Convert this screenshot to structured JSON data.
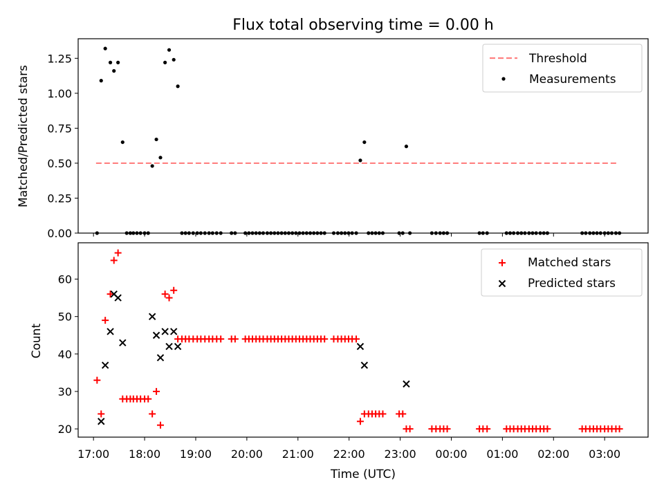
{
  "chart_data": [
    {
      "type": "scatter",
      "title": "Flux total observing time = 0.00 h",
      "xlabel": "",
      "ylabel": "Matched/Predicted stars",
      "ylim": [
        0,
        1.39
      ],
      "xlim": [
        -0.3,
        10.85
      ],
      "yticks": [
        0,
        0.25,
        0.5,
        0.75,
        1.0,
        1.25
      ],
      "ytick_labels": [
        "0.00",
        "0.25",
        "0.50",
        "0.75",
        "1.00",
        "1.25"
      ],
      "legend_position": "top-right",
      "threshold": {
        "name": "Threshold",
        "y": 0.5,
        "x_range": [
          0.05,
          10.25
        ],
        "color": "#ff8080"
      },
      "series": [
        {
          "name": "Measurements",
          "color": "#000000",
          "points": [
            [
              0.07,
              0
            ],
            [
              0.15,
              1.09
            ],
            [
              0.23,
              1.32
            ],
            [
              0.33,
              1.22
            ],
            [
              0.4,
              1.16
            ],
            [
              0.48,
              1.22
            ],
            [
              0.57,
              0.65
            ],
            [
              0.65,
              0
            ],
            [
              0.72,
              0
            ],
            [
              0.78,
              0
            ],
            [
              0.85,
              0
            ],
            [
              0.92,
              0
            ],
            [
              1.0,
              0
            ],
            [
              1.07,
              0
            ],
            [
              1.15,
              0.48
            ],
            [
              1.23,
              0.67
            ],
            [
              1.31,
              0.54
            ],
            [
              1.4,
              1.22
            ],
            [
              1.48,
              1.31
            ],
            [
              1.57,
              1.24
            ],
            [
              1.65,
              1.05
            ],
            [
              1.73,
              0
            ],
            [
              1.8,
              0
            ],
            [
              1.87,
              0
            ],
            [
              1.95,
              0
            ],
            [
              2.03,
              0
            ],
            [
              2.1,
              0
            ],
            [
              2.18,
              0
            ],
            [
              2.26,
              0
            ],
            [
              2.33,
              0
            ],
            [
              2.41,
              0
            ],
            [
              2.49,
              0
            ],
            [
              2.7,
              0
            ],
            [
              2.77,
              0
            ],
            [
              2.97,
              0
            ],
            [
              3.04,
              0
            ],
            [
              3.11,
              0
            ],
            [
              3.18,
              0
            ],
            [
              3.25,
              0
            ],
            [
              3.32,
              0
            ],
            [
              3.4,
              0
            ],
            [
              3.47,
              0
            ],
            [
              3.54,
              0
            ],
            [
              3.61,
              0
            ],
            [
              3.68,
              0
            ],
            [
              3.75,
              0
            ],
            [
              3.82,
              0
            ],
            [
              3.89,
              0
            ],
            [
              3.96,
              0
            ],
            [
              4.03,
              0
            ],
            [
              4.1,
              0
            ],
            [
              4.17,
              0
            ],
            [
              4.24,
              0
            ],
            [
              4.31,
              0
            ],
            [
              4.38,
              0
            ],
            [
              4.45,
              0
            ],
            [
              4.52,
              0
            ],
            [
              4.7,
              0
            ],
            [
              4.78,
              0
            ],
            [
              4.85,
              0
            ],
            [
              4.92,
              0
            ],
            [
              4.99,
              0
            ],
            [
              5.06,
              0
            ],
            [
              5.14,
              0
            ],
            [
              5.22,
              0.52
            ],
            [
              5.3,
              0.65
            ],
            [
              5.38,
              0
            ],
            [
              5.45,
              0
            ],
            [
              5.52,
              0
            ],
            [
              5.59,
              0
            ],
            [
              5.66,
              0
            ],
            [
              5.98,
              0
            ],
            [
              6.05,
              0
            ],
            [
              6.12,
              0.62
            ],
            [
              6.19,
              0
            ],
            [
              6.62,
              0
            ],
            [
              6.7,
              0
            ],
            [
              6.78,
              0
            ],
            [
              6.85,
              0
            ],
            [
              6.92,
              0
            ],
            [
              7.55,
              0
            ],
            [
              7.62,
              0
            ],
            [
              7.7,
              0
            ],
            [
              8.08,
              0
            ],
            [
              8.15,
              0
            ],
            [
              8.22,
              0
            ],
            [
              8.3,
              0
            ],
            [
              8.37,
              0
            ],
            [
              8.44,
              0
            ],
            [
              8.52,
              0
            ],
            [
              8.59,
              0
            ],
            [
              8.66,
              0
            ],
            [
              8.74,
              0
            ],
            [
              8.81,
              0
            ],
            [
              8.88,
              0
            ],
            [
              9.56,
              0
            ],
            [
              9.63,
              0
            ],
            [
              9.71,
              0
            ],
            [
              9.78,
              0
            ],
            [
              9.85,
              0
            ],
            [
              9.92,
              0
            ],
            [
              10.0,
              0
            ],
            [
              10.07,
              0
            ],
            [
              10.14,
              0
            ],
            [
              10.22,
              0
            ],
            [
              10.29,
              0
            ]
          ]
        }
      ]
    },
    {
      "type": "scatter",
      "title": "",
      "xlabel": "Time (UTC)",
      "ylabel": "Count",
      "ylim": [
        17.8,
        69.7
      ],
      "xlim": [
        -0.3,
        10.85
      ],
      "yticks": [
        20,
        30,
        40,
        50,
        60
      ],
      "ytick_labels": [
        "20",
        "30",
        "40",
        "50",
        "60"
      ],
      "xticks": [
        0,
        1,
        2,
        3,
        4,
        5,
        6,
        7,
        8,
        9,
        10
      ],
      "xtick_labels": [
        "17:00",
        "18:00",
        "19:00",
        "20:00",
        "21:00",
        "22:00",
        "23:00",
        "00:00",
        "01:00",
        "02:00",
        "03:00"
      ],
      "legend_position": "top-right",
      "series": [
        {
          "name": "Matched stars",
          "color": "#ff0000",
          "marker": "plus",
          "points": [
            [
              0.07,
              33
            ],
            [
              0.15,
              24
            ],
            [
              0.23,
              49
            ],
            [
              0.33,
              56
            ],
            [
              0.4,
              65
            ],
            [
              0.48,
              67
            ],
            [
              0.57,
              28
            ],
            [
              0.65,
              28
            ],
            [
              0.72,
              28
            ],
            [
              0.78,
              28
            ],
            [
              0.85,
              28
            ],
            [
              0.92,
              28
            ],
            [
              1.0,
              28
            ],
            [
              1.07,
              28
            ],
            [
              1.15,
              24
            ],
            [
              1.23,
              30
            ],
            [
              1.31,
              21
            ],
            [
              1.4,
              56
            ],
            [
              1.48,
              55
            ],
            [
              1.57,
              57
            ],
            [
              1.65,
              44
            ],
            [
              1.73,
              44
            ],
            [
              1.8,
              44
            ],
            [
              1.87,
              44
            ],
            [
              1.95,
              44
            ],
            [
              2.03,
              44
            ],
            [
              2.1,
              44
            ],
            [
              2.18,
              44
            ],
            [
              2.26,
              44
            ],
            [
              2.33,
              44
            ],
            [
              2.41,
              44
            ],
            [
              2.49,
              44
            ],
            [
              2.7,
              44
            ],
            [
              2.77,
              44
            ],
            [
              2.97,
              44
            ],
            [
              3.04,
              44
            ],
            [
              3.11,
              44
            ],
            [
              3.18,
              44
            ],
            [
              3.25,
              44
            ],
            [
              3.32,
              44
            ],
            [
              3.4,
              44
            ],
            [
              3.47,
              44
            ],
            [
              3.54,
              44
            ],
            [
              3.61,
              44
            ],
            [
              3.68,
              44
            ],
            [
              3.75,
              44
            ],
            [
              3.82,
              44
            ],
            [
              3.89,
              44
            ],
            [
              3.96,
              44
            ],
            [
              4.03,
              44
            ],
            [
              4.1,
              44
            ],
            [
              4.17,
              44
            ],
            [
              4.24,
              44
            ],
            [
              4.31,
              44
            ],
            [
              4.38,
              44
            ],
            [
              4.45,
              44
            ],
            [
              4.52,
              44
            ],
            [
              4.7,
              44
            ],
            [
              4.78,
              44
            ],
            [
              4.85,
              44
            ],
            [
              4.92,
              44
            ],
            [
              4.99,
              44
            ],
            [
              5.06,
              44
            ],
            [
              5.14,
              44
            ],
            [
              5.22,
              22
            ],
            [
              5.3,
              24
            ],
            [
              5.38,
              24
            ],
            [
              5.45,
              24
            ],
            [
              5.52,
              24
            ],
            [
              5.59,
              24
            ],
            [
              5.66,
              24
            ],
            [
              5.98,
              24
            ],
            [
              6.05,
              24
            ],
            [
              6.12,
              20
            ],
            [
              6.19,
              20
            ],
            [
              6.62,
              20
            ],
            [
              6.7,
              20
            ],
            [
              6.78,
              20
            ],
            [
              6.85,
              20
            ],
            [
              6.92,
              20
            ],
            [
              7.55,
              20
            ],
            [
              7.62,
              20
            ],
            [
              7.7,
              20
            ],
            [
              8.08,
              20
            ],
            [
              8.15,
              20
            ],
            [
              8.22,
              20
            ],
            [
              8.3,
              20
            ],
            [
              8.37,
              20
            ],
            [
              8.44,
              20
            ],
            [
              8.52,
              20
            ],
            [
              8.59,
              20
            ],
            [
              8.66,
              20
            ],
            [
              8.74,
              20
            ],
            [
              8.81,
              20
            ],
            [
              8.88,
              20
            ],
            [
              9.56,
              20
            ],
            [
              9.63,
              20
            ],
            [
              9.71,
              20
            ],
            [
              9.78,
              20
            ],
            [
              9.85,
              20
            ],
            [
              9.92,
              20
            ],
            [
              10.0,
              20
            ],
            [
              10.07,
              20
            ],
            [
              10.14,
              20
            ],
            [
              10.22,
              20
            ],
            [
              10.29,
              20
            ]
          ]
        },
        {
          "name": "Predicted stars",
          "color": "#000000",
          "marker": "x",
          "points": [
            [
              0.15,
              22
            ],
            [
              0.23,
              37
            ],
            [
              0.33,
              46
            ],
            [
              0.4,
              56
            ],
            [
              0.48,
              55
            ],
            [
              0.57,
              43
            ],
            [
              1.15,
              50
            ],
            [
              1.23,
              45
            ],
            [
              1.31,
              39
            ],
            [
              1.4,
              46
            ],
            [
              1.48,
              42
            ],
            [
              1.57,
              46
            ],
            [
              1.65,
              42
            ],
            [
              5.22,
              42
            ],
            [
              5.3,
              37
            ],
            [
              6.12,
              32
            ]
          ]
        }
      ]
    }
  ]
}
